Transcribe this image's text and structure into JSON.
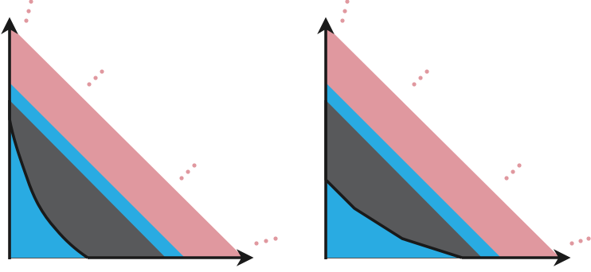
{
  "diagram": {
    "panels": [
      {
        "name": "left-panel",
        "hull": "curved-convex"
      },
      {
        "name": "right-panel",
        "hull": "piecewise-linear"
      }
    ],
    "colors": {
      "outer_band": "#e0989f",
      "middle_band": "#29abe2",
      "inner_region": "#58595b",
      "outline": "#1a1a1a",
      "dots": "#e0989f",
      "axis_frame": "#1a1a1a"
    },
    "continuation_marks": {
      "glyph": "ellipsis-dots",
      "count_per_panel": 4
    }
  }
}
